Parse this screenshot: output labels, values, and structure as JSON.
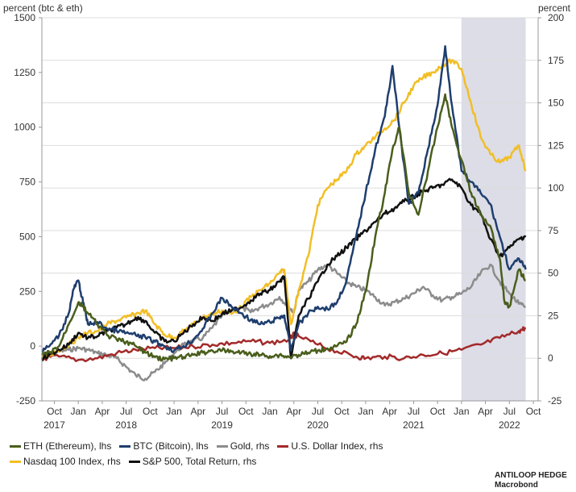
{
  "chart_data": {
    "type": "line",
    "left_axis_label": "percent (btc & eth)",
    "right_axis_label": "percent",
    "left_ylim": [
      -250,
      1500
    ],
    "right_ylim": [
      -25,
      200
    ],
    "left_ticks": [
      "1500",
      "1250",
      "1000",
      "750",
      "500",
      "250",
      "0",
      "-250"
    ],
    "left_tick_values": [
      1500,
      1250,
      1000,
      750,
      500,
      250,
      0,
      -250
    ],
    "right_ticks": [
      "200",
      "175",
      "150",
      "125",
      "100",
      "75",
      "50",
      "25",
      "0",
      "-25"
    ],
    "right_tick_values": [
      200,
      175,
      150,
      125,
      100,
      75,
      50,
      25,
      0,
      -25
    ],
    "x_range": [
      2017.62,
      2022.8
    ],
    "x_ticks": [
      {
        "label": "Oct",
        "x": 2017.75
      },
      {
        "label": "Jan",
        "x": 2018.0
      },
      {
        "label": "Apr",
        "x": 2018.25
      },
      {
        "label": "Jul",
        "x": 2018.5
      },
      {
        "label": "Oct",
        "x": 2018.75
      },
      {
        "label": "Jan",
        "x": 2019.0
      },
      {
        "label": "Apr",
        "x": 2019.25
      },
      {
        "label": "Jul",
        "x": 2019.5
      },
      {
        "label": "Oct",
        "x": 2019.75
      },
      {
        "label": "Jan",
        "x": 2020.0
      },
      {
        "label": "Apr",
        "x": 2020.25
      },
      {
        "label": "Jul",
        "x": 2020.5
      },
      {
        "label": "Oct",
        "x": 2020.75
      },
      {
        "label": "Jan",
        "x": 2021.0
      },
      {
        "label": "Apr",
        "x": 2021.25
      },
      {
        "label": "Jul",
        "x": 2021.5
      },
      {
        "label": "Oct",
        "x": 2021.75
      },
      {
        "label": "Jan",
        "x": 2022.0
      },
      {
        "label": "Apr",
        "x": 2022.25
      },
      {
        "label": "Jul",
        "x": 2022.5
      },
      {
        "label": "Oct",
        "x": 2022.75
      }
    ],
    "year_labels": [
      {
        "label": "2017",
        "x": 2017.75
      },
      {
        "label": "2018",
        "x": 2018.5
      },
      {
        "label": "2019",
        "x": 2019.5
      },
      {
        "label": "2020",
        "x": 2020.5
      },
      {
        "label": "2021",
        "x": 2021.5
      },
      {
        "label": "2022",
        "x": 2022.5
      }
    ],
    "shaded_region": {
      "x_start": 2022.0,
      "x_end": 2022.67,
      "color": "#dcdde6"
    },
    "series": [
      {
        "name": "Gold, rhs",
        "axis": "right",
        "color": "#8c8c8c",
        "x": [
          2017.62,
          2017.7,
          2017.8,
          2017.9,
          2018.0,
          2018.1,
          2018.2,
          2018.3,
          2018.4,
          2018.5,
          2018.6,
          2018.7,
          2018.8,
          2018.9,
          2019.0,
          2019.1,
          2019.2,
          2019.3,
          2019.4,
          2019.5,
          2019.6,
          2019.7,
          2019.8,
          2019.9,
          2020.0,
          2020.1,
          2020.2,
          2020.25,
          2020.3,
          2020.4,
          2020.5,
          2020.6,
          2020.7,
          2020.8,
          2020.9,
          2021.0,
          2021.1,
          2021.2,
          2021.3,
          2021.4,
          2021.5,
          2021.6,
          2021.7,
          2021.8,
          2021.9,
          2022.0,
          2022.1,
          2022.2,
          2022.3,
          2022.4,
          2022.5,
          2022.6,
          2022.67
        ],
        "values": [
          2,
          3,
          4,
          5,
          6,
          5,
          3,
          2,
          0,
          -5,
          -10,
          -12,
          -8,
          -3,
          3,
          8,
          10,
          12,
          18,
          25,
          28,
          30,
          27,
          30,
          32,
          36,
          30,
          27,
          40,
          45,
          52,
          55,
          50,
          45,
          42,
          40,
          36,
          31,
          33,
          35,
          38,
          42,
          37,
          34,
          36,
          38,
          42,
          50,
          55,
          45,
          38,
          32,
          30
        ]
      },
      {
        "name": "U.S. Dollar Index, rhs",
        "axis": "right",
        "color": "#a32a2a",
        "x": [
          2017.62,
          2017.8,
          2018.0,
          2018.2,
          2018.4,
          2018.6,
          2018.8,
          2019.0,
          2019.2,
          2019.4,
          2019.6,
          2019.8,
          2020.0,
          2020.2,
          2020.25,
          2020.3,
          2020.5,
          2020.7,
          2020.9,
          2021.0,
          2021.2,
          2021.4,
          2021.6,
          2021.8,
          2022.0,
          2022.2,
          2022.4,
          2022.6,
          2022.67
        ],
        "values": [
          0,
          1,
          -1,
          0,
          3,
          5,
          6,
          6,
          7,
          8,
          9,
          10,
          9,
          11,
          14,
          13,
          8,
          4,
          1,
          0,
          1,
          0,
          2,
          3,
          5,
          8,
          12,
          16,
          18
        ]
      },
      {
        "name": "Nasdaq 100 Index, rhs",
        "axis": "right",
        "color": "#f2be27",
        "x": [
          2017.62,
          2017.7,
          2017.8,
          2017.9,
          2018.0,
          2018.1,
          2018.2,
          2018.3,
          2018.4,
          2018.5,
          2018.6,
          2018.7,
          2018.8,
          2018.9,
          2019.0,
          2019.1,
          2019.2,
          2019.3,
          2019.4,
          2019.5,
          2019.6,
          2019.7,
          2019.8,
          2019.9,
          2020.0,
          2020.1,
          2020.15,
          2020.22,
          2020.3,
          2020.4,
          2020.5,
          2020.6,
          2020.7,
          2020.8,
          2020.9,
          2021.0,
          2021.1,
          2021.2,
          2021.3,
          2021.4,
          2021.5,
          2021.6,
          2021.7,
          2021.8,
          2021.9,
          2022.0,
          2022.1,
          2022.2,
          2022.3,
          2022.4,
          2022.5,
          2022.6,
          2022.67
        ],
        "values": [
          0,
          2,
          5,
          8,
          12,
          15,
          16,
          20,
          22,
          24,
          26,
          28,
          20,
          14,
          12,
          16,
          20,
          24,
          26,
          28,
          26,
          30,
          36,
          40,
          44,
          50,
          52,
          20,
          40,
          60,
          90,
          100,
          105,
          110,
          120,
          125,
          130,
          135,
          140,
          150,
          160,
          165,
          168,
          172,
          175,
          170,
          150,
          130,
          120,
          115,
          118,
          125,
          110
        ]
      },
      {
        "name": "S&P 500, Total Return, rhs",
        "axis": "right",
        "color": "#111111",
        "x": [
          2017.62,
          2017.7,
          2017.8,
          2017.9,
          2018.0,
          2018.1,
          2018.2,
          2018.3,
          2018.4,
          2018.5,
          2018.6,
          2018.7,
          2018.8,
          2018.9,
          2019.0,
          2019.1,
          2019.2,
          2019.3,
          2019.4,
          2019.5,
          2019.6,
          2019.7,
          2019.8,
          2019.9,
          2020.0,
          2020.1,
          2020.15,
          2020.22,
          2020.3,
          2020.4,
          2020.5,
          2020.6,
          2020.7,
          2020.8,
          2020.9,
          2021.0,
          2021.1,
          2021.2,
          2021.3,
          2021.4,
          2021.5,
          2021.6,
          2021.7,
          2021.8,
          2021.9,
          2022.0,
          2022.1,
          2022.2,
          2022.3,
          2022.4,
          2022.5,
          2022.6,
          2022.67
        ],
        "values": [
          0,
          2,
          5,
          8,
          15,
          12,
          13,
          16,
          18,
          20,
          24,
          22,
          15,
          10,
          10,
          15,
          20,
          24,
          22,
          26,
          28,
          30,
          34,
          38,
          40,
          45,
          48,
          0,
          25,
          35,
          45,
          55,
          60,
          65,
          70,
          75,
          80,
          85,
          88,
          92,
          95,
          98,
          100,
          102,
          105,
          100,
          90,
          85,
          70,
          60,
          65,
          70,
          72
        ]
      },
      {
        "name": "BTC (Bitcoin), lhs",
        "axis": "left",
        "color": "#1f3e6e",
        "x": [
          2017.62,
          2017.7,
          2017.8,
          2017.9,
          2017.95,
          2018.0,
          2018.05,
          2018.1,
          2018.2,
          2018.3,
          2018.4,
          2018.5,
          2018.6,
          2018.7,
          2018.8,
          2018.9,
          2019.0,
          2019.1,
          2019.2,
          2019.3,
          2019.4,
          2019.5,
          2019.6,
          2019.7,
          2019.8,
          2019.9,
          2020.0,
          2020.1,
          2020.15,
          2020.22,
          2020.3,
          2020.4,
          2020.5,
          2020.6,
          2020.7,
          2020.8,
          2020.9,
          2021.0,
          2021.1,
          2021.2,
          2021.28,
          2021.35,
          2021.45,
          2021.55,
          2021.65,
          2021.75,
          2021.83,
          2021.9,
          2022.0,
          2022.1,
          2022.2,
          2022.3,
          2022.4,
          2022.5,
          2022.6,
          2022.67
        ],
        "values": [
          -20,
          0,
          50,
          150,
          260,
          300,
          200,
          100,
          110,
          80,
          70,
          60,
          50,
          40,
          20,
          0,
          -20,
          0,
          30,
          80,
          150,
          220,
          180,
          150,
          120,
          100,
          110,
          130,
          140,
          -20,
          100,
          150,
          180,
          170,
          200,
          300,
          500,
          700,
          900,
          1050,
          1280,
          1000,
          650,
          700,
          900,
          1100,
          1370,
          1100,
          800,
          750,
          700,
          650,
          500,
          350,
          400,
          350
        ]
      },
      {
        "name": "ETH (Ethereum), lhs",
        "axis": "left",
        "color": "#4a5e1c",
        "x": [
          2017.62,
          2017.7,
          2017.8,
          2017.9,
          2018.0,
          2018.05,
          2018.1,
          2018.2,
          2018.3,
          2018.4,
          2018.5,
          2018.6,
          2018.7,
          2018.8,
          2018.9,
          2019.0,
          2019.1,
          2019.2,
          2019.3,
          2019.4,
          2019.5,
          2019.6,
          2019.7,
          2019.8,
          2019.9,
          2020.0,
          2020.1,
          2020.2,
          2020.3,
          2020.4,
          2020.5,
          2020.6,
          2020.7,
          2020.8,
          2020.9,
          2021.0,
          2021.1,
          2021.2,
          2021.28,
          2021.35,
          2021.45,
          2021.55,
          2021.65,
          2021.75,
          2021.83,
          2021.9,
          2022.0,
          2022.1,
          2022.2,
          2022.3,
          2022.4,
          2022.45,
          2022.5,
          2022.6,
          2022.67
        ],
        "values": [
          -40,
          -30,
          0,
          100,
          200,
          180,
          150,
          100,
          50,
          30,
          20,
          0,
          -30,
          -50,
          -60,
          -55,
          -50,
          -40,
          -30,
          -20,
          -20,
          -25,
          -30,
          -35,
          -40,
          -45,
          -40,
          -50,
          -40,
          -30,
          -20,
          -10,
          0,
          20,
          100,
          250,
          500,
          700,
          900,
          1000,
          700,
          600,
          800,
          1000,
          1150,
          1000,
          850,
          700,
          600,
          550,
          400,
          200,
          180,
          350,
          300
        ]
      }
    ],
    "legend": [
      "ETH (Ethereum), lhs",
      "BTC (Bitcoin), lhs",
      "Gold, rhs",
      "U.S. Dollar Index, rhs",
      "Nasdaq 100 Index, rhs",
      "S&P 500, Total Return, rhs"
    ],
    "legend_colors": [
      "#4a5e1c",
      "#1f3e6e",
      "#8c8c8c",
      "#a32a2a",
      "#f2be27",
      "#111111"
    ]
  },
  "source": {
    "line1": "ANTILOOP HEDGE",
    "line2": "Macrobond"
  }
}
